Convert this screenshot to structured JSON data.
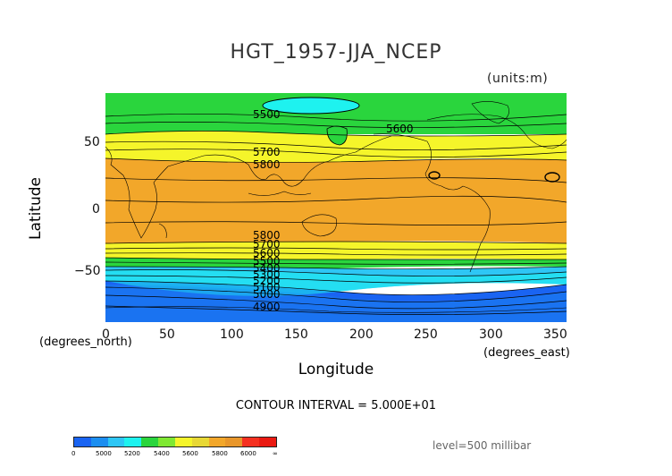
{
  "title": "HGT_1957-JJA_NCEP",
  "units": "(units:m)",
  "y_axis": {
    "label": "Latitude",
    "sublabel": "(degrees_north)",
    "ticks": [
      "50",
      "0",
      "−50"
    ]
  },
  "x_axis": {
    "label": "Longitude",
    "sublabel": "(degrees_east)",
    "ticks": [
      "0",
      "50",
      "100",
      "150",
      "200",
      "250",
      "300",
      "350"
    ]
  },
  "contour_interval": "CONTOUR INTERVAL = 5.000E+01",
  "level": "level=500 millibar",
  "contour_labels": [
    "5500",
    "5600",
    "5700",
    "5800",
    "5800",
    "5700",
    "5600",
    "5500",
    "5400",
    "5300",
    "5200",
    "5100",
    "5000",
    "4900"
  ],
  "colorbar": {
    "colors": [
      "#1a64f2",
      "#1c8ef0",
      "#2ec6f5",
      "#1ef2ef",
      "#2ad53d",
      "#7fe832",
      "#f5f52a",
      "#e8d835",
      "#f2a72a",
      "#e8962a",
      "#f53020",
      "#ea1a12"
    ],
    "labels": [
      "0",
      "5000",
      "5200",
      "5400",
      "5600",
      "5800",
      "6000",
      "∞"
    ]
  },
  "map_data": {
    "type": "filled-contour-map",
    "projection": "equirectangular",
    "lon_range": [
      0,
      360
    ],
    "lat_range": [
      -90,
      90
    ],
    "bands_north_to_south": [
      {
        "lat_from": 90,
        "lat_to": 58,
        "color": "#2ad53d"
      },
      {
        "lat_from": 58,
        "lat_to": 40,
        "color": "#f5f52a"
      },
      {
        "lat_from": 40,
        "lat_to": -24,
        "color": "#f2a72a"
      },
      {
        "lat_from": -24,
        "lat_to": -36,
        "color": "#f5f52a"
      },
      {
        "lat_from": -36,
        "lat_to": -46,
        "color": "#2ad53d"
      },
      {
        "lat_from": -46,
        "lat_to": -60,
        "color": "#2ec6f5"
      },
      {
        "lat_from": -60,
        "lat_to": -90,
        "color": "#1a64f2"
      }
    ]
  }
}
